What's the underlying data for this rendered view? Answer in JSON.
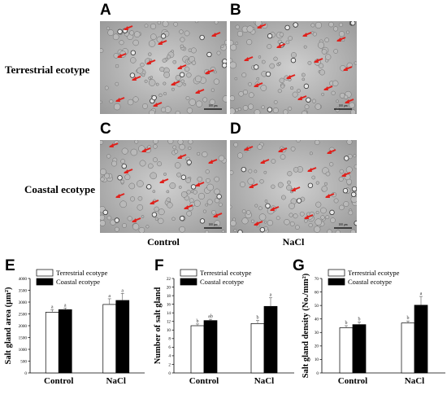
{
  "panels": {
    "A": "A",
    "B": "B",
    "C": "C",
    "D": "D",
    "E": "E",
    "F": "F",
    "G": "G"
  },
  "row_labels": [
    "Terrestrial  ecotype",
    "Coastal  ecotype"
  ],
  "col_labels": [
    "Control",
    "NaCl"
  ],
  "scale_bar_text": "100 μm",
  "colors": {
    "arrow": "#e0201b",
    "terrestrial_fill": "#ffffff",
    "coastal_fill": "#000000"
  },
  "chart_data": [
    {
      "type": "bar",
      "panel": "E",
      "ylabel": "Salt gland area (μm²)",
      "ylim": [
        0,
        4000
      ],
      "yticks": [
        0,
        500,
        1000,
        1500,
        2000,
        2500,
        3000,
        3500,
        4000
      ],
      "categories": [
        "Control",
        "NaCl"
      ],
      "series": [
        {
          "name": "Terrestrial ecotype",
          "values": [
            2570,
            2900
          ],
          "err": [
            110,
            240
          ],
          "letters": [
            "a",
            "a"
          ]
        },
        {
          "name": "Coastal ecotype",
          "values": [
            2680,
            3070
          ],
          "err": [
            70,
            300
          ],
          "letters": [
            "a",
            "a"
          ]
        }
      ],
      "legend": "top-left"
    },
    {
      "type": "bar",
      "panel": "F",
      "ylabel": "Number of salt gland",
      "ylim": [
        0,
        22
      ],
      "yticks": [
        0,
        2,
        4,
        6,
        8,
        10,
        12,
        14,
        16,
        18,
        20,
        22
      ],
      "categories": [
        "Control",
        "NaCl"
      ],
      "series": [
        {
          "name": "Terrestrial ecotype",
          "values": [
            11.0,
            11.5
          ],
          "err": [
            0.4,
            0.7
          ],
          "letters": [
            "b",
            "b"
          ]
        },
        {
          "name": "Coastal ecotype",
          "values": [
            12.2,
            15.5
          ],
          "err": [
            0.3,
            2.0
          ],
          "letters": [
            "ab",
            "a"
          ]
        }
      ],
      "legend": "top-left"
    },
    {
      "type": "bar",
      "panel": "G",
      "ylabel": "Salt gland density (No./mm²)",
      "ylim": [
        0,
        70
      ],
      "yticks": [
        0,
        10,
        20,
        30,
        40,
        50,
        60,
        70
      ],
      "categories": [
        "Control",
        "NaCl"
      ],
      "series": [
        {
          "name": "Terrestrial ecotype",
          "values": [
            33.5,
            37.0
          ],
          "err": [
            1.5,
            1.5
          ],
          "letters": [
            "b",
            "b"
          ]
        },
        {
          "name": "Coastal ecotype",
          "values": [
            35.8,
            50.2
          ],
          "err": [
            2.0,
            6.5
          ],
          "letters": [
            "b",
            "a"
          ]
        }
      ],
      "legend": "top-left"
    }
  ]
}
